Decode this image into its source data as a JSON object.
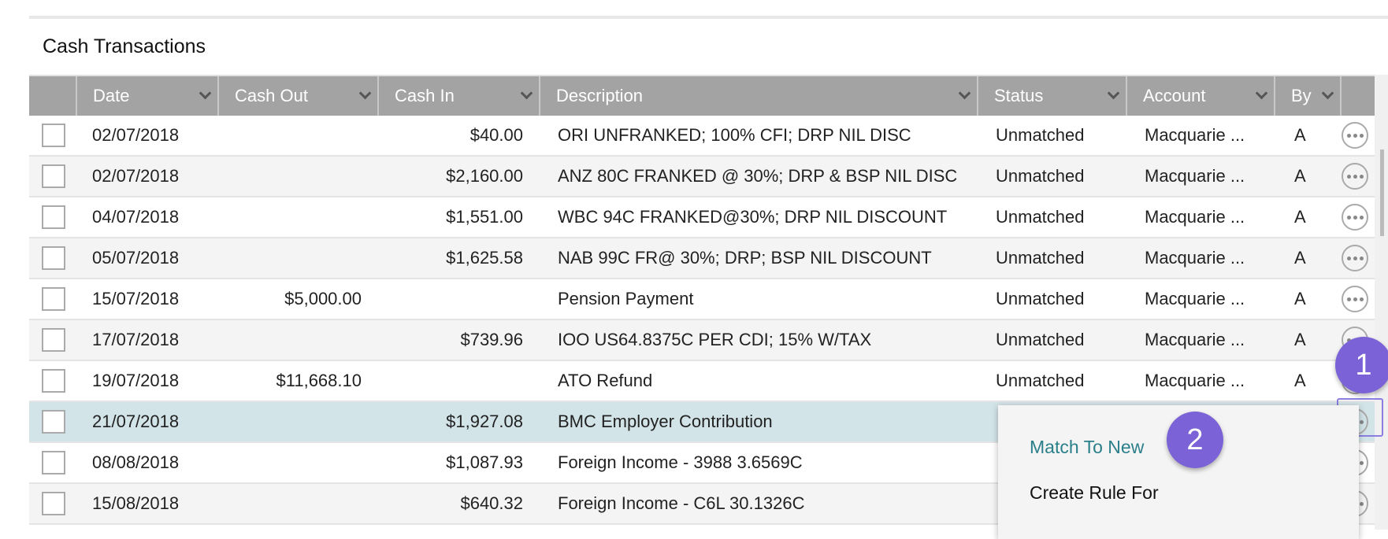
{
  "title": "Cash Transactions",
  "columns": [
    "",
    "Date",
    "Cash Out",
    "Cash In",
    "Description",
    "Status",
    "Account",
    "By",
    ""
  ],
  "rows": [
    {
      "date": "02/07/2018",
      "out": "",
      "in": "$40.00",
      "desc": "ORI UNFRANKED; 100% CFI; DRP NIL DISC",
      "status": "Unmatched",
      "account": "Macquarie ...",
      "by": "A"
    },
    {
      "date": "02/07/2018",
      "out": "",
      "in": "$2,160.00",
      "desc": "ANZ 80C FRANKED @ 30%; DRP & BSP NIL DISC",
      "status": "Unmatched",
      "account": "Macquarie ...",
      "by": "A"
    },
    {
      "date": "04/07/2018",
      "out": "",
      "in": "$1,551.00",
      "desc": "WBC 94C FRANKED@30%; DRP NIL DISCOUNT",
      "status": "Unmatched",
      "account": "Macquarie ...",
      "by": "A"
    },
    {
      "date": "05/07/2018",
      "out": "",
      "in": "$1,625.58",
      "desc": "NAB 99C FR@ 30%; DRP; BSP NIL DISCOUNT",
      "status": "Unmatched",
      "account": "Macquarie ...",
      "by": "A"
    },
    {
      "date": "15/07/2018",
      "out": "$5,000.00",
      "in": "",
      "desc": "Pension Payment",
      "status": "Unmatched",
      "account": "Macquarie ...",
      "by": "A"
    },
    {
      "date": "17/07/2018",
      "out": "",
      "in": "$739.96",
      "desc": "IOO US64.8375C PER CDI; 15% W/TAX",
      "status": "Unmatched",
      "account": "Macquarie ...",
      "by": "A"
    },
    {
      "date": "19/07/2018",
      "out": "$11,668.10",
      "in": "",
      "desc": "ATO Refund",
      "status": "Unmatched",
      "account": "Macquarie ...",
      "by": "A"
    },
    {
      "date": "21/07/2018",
      "out": "",
      "in": "$1,927.08",
      "desc": "BMC Employer Contribution",
      "status": "",
      "account": "",
      "by": "",
      "selected": true
    },
    {
      "date": "08/08/2018",
      "out": "",
      "in": "$1,087.93",
      "desc": "Foreign Income - 3988 3.6569C",
      "status": "",
      "account": "",
      "by": ""
    },
    {
      "date": "15/08/2018",
      "out": "",
      "in": "$640.32",
      "desc": "Foreign Income - C6L 30.1326C",
      "status": "",
      "account": "",
      "by": ""
    }
  ],
  "menu": {
    "items": [
      "Match To New",
      "Create Rule For"
    ],
    "active_color": "#2a7f8a"
  },
  "badges": [
    "1",
    "2"
  ],
  "colors": {
    "header": "#a3a3a3",
    "selected_row": "#d3e4e8",
    "badge": "#7b62d6"
  }
}
